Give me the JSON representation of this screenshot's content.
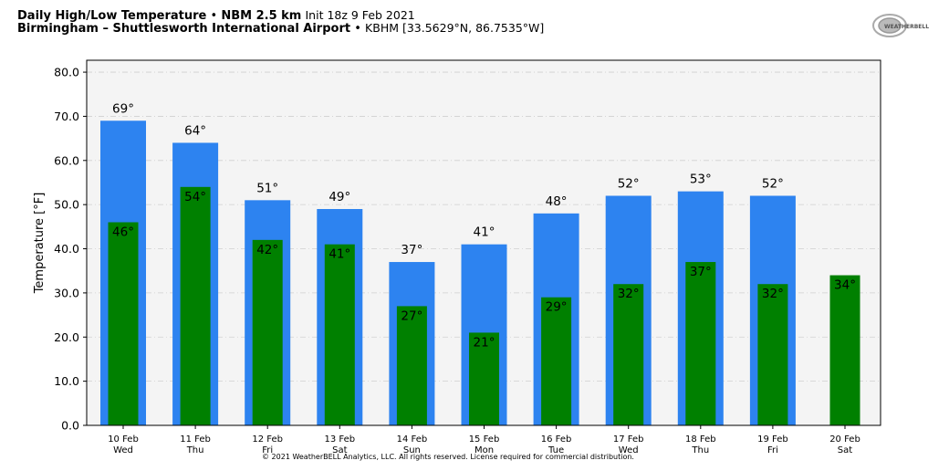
{
  "header": {
    "title_bold": "Daily High/Low Temperature",
    "model": "NBM 2.5 km",
    "init": "Init 18z 9 Feb 2021",
    "station_name": "Birmingham – Shuttlesworth International Airport",
    "station_id": "KBHM [33.5629°N, 86.7535°W]",
    "separator": "•"
  },
  "logo": {
    "text": "WeatherBELL"
  },
  "footer": {
    "copyright": "© 2021 WeatherBELL Analytics, LLC. All rights reserved. License required for commercial distribution."
  },
  "chart_data": {
    "type": "bar",
    "title": "Daily High/Low Temperature",
    "ylabel": "Temperature [°F]",
    "xlabel": "",
    "ylim": [
      0,
      82.7
    ],
    "yticks": [
      0,
      10,
      20,
      30,
      40,
      50,
      60,
      70,
      80
    ],
    "ytick_labels": [
      "0.0",
      "10.0",
      "20.0",
      "30.0",
      "40.0",
      "50.0",
      "60.0",
      "70.0",
      "80.0"
    ],
    "grid": true,
    "categories": [
      "10 Feb",
      "11 Feb",
      "12 Feb",
      "13 Feb",
      "14 Feb",
      "15 Feb",
      "16 Feb",
      "17 Feb",
      "18 Feb",
      "19 Feb",
      "20 Feb"
    ],
    "weekdays": [
      "Wed",
      "Thu",
      "Fri",
      "Sat",
      "Sun",
      "Mon",
      "Tue",
      "Wed",
      "Thu",
      "Fri",
      "Sat"
    ],
    "series": [
      {
        "key": "high",
        "color": "#2d83f0",
        "values": [
          69,
          64,
          51,
          49,
          37,
          41,
          48,
          52,
          53,
          52,
          null
        ]
      },
      {
        "key": "low",
        "color": "#008000",
        "values": [
          46,
          54,
          42,
          41,
          27,
          21,
          29,
          32,
          37,
          32,
          34
        ]
      }
    ],
    "colors": {
      "plot_bg": "#f4f4f4",
      "grid": "#d0d0d0"
    }
  }
}
